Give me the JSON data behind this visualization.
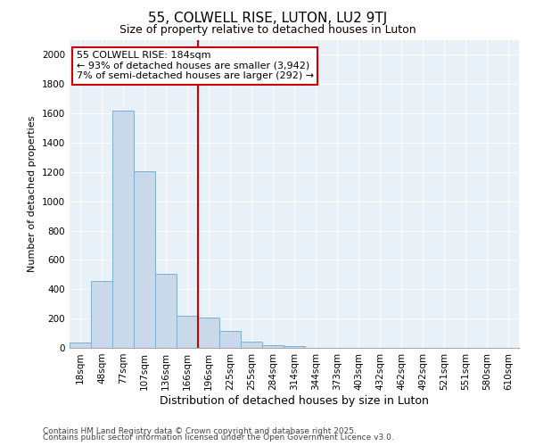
{
  "title1": "55, COLWELL RISE, LUTON, LU2 9TJ",
  "title2": "Size of property relative to detached houses in Luton",
  "xlabel": "Distribution of detached houses by size in Luton",
  "ylabel": "Number of detached properties",
  "categories": [
    "18sqm",
    "48sqm",
    "77sqm",
    "107sqm",
    "136sqm",
    "166sqm",
    "196sqm",
    "225sqm",
    "255sqm",
    "284sqm",
    "314sqm",
    "344sqm",
    "373sqm",
    "403sqm",
    "432sqm",
    "462sqm",
    "492sqm",
    "521sqm",
    "551sqm",
    "580sqm",
    "610sqm"
  ],
  "values": [
    35,
    455,
    1620,
    1205,
    505,
    220,
    210,
    115,
    45,
    20,
    10,
    2,
    0,
    0,
    0,
    0,
    0,
    0,
    0,
    0,
    0
  ],
  "bar_color": "#c9d9ea",
  "bar_edge_color": "#7bafd4",
  "vline_color": "#cc0000",
  "annotation_title": "55 COLWELL RISE: 184sqm",
  "annotation_line1": "← 93% of detached houses are smaller (3,942)",
  "annotation_line2": "7% of semi-detached houses are larger (292) →",
  "annotation_box_edge_color": "#cc0000",
  "ylim": [
    0,
    2100
  ],
  "yticks": [
    0,
    200,
    400,
    600,
    800,
    1000,
    1200,
    1400,
    1600,
    1800,
    2000
  ],
  "bg_color": "#e8f0f8",
  "grid_color": "#ffffff",
  "footer1": "Contains HM Land Registry data © Crown copyright and database right 2025.",
  "footer2": "Contains public sector information licensed under the Open Government Licence v3.0.",
  "title1_fontsize": 11,
  "title2_fontsize": 9,
  "xlabel_fontsize": 9,
  "ylabel_fontsize": 8,
  "tick_fontsize": 7.5,
  "annotation_fontsize": 8,
  "footer_fontsize": 6.5
}
